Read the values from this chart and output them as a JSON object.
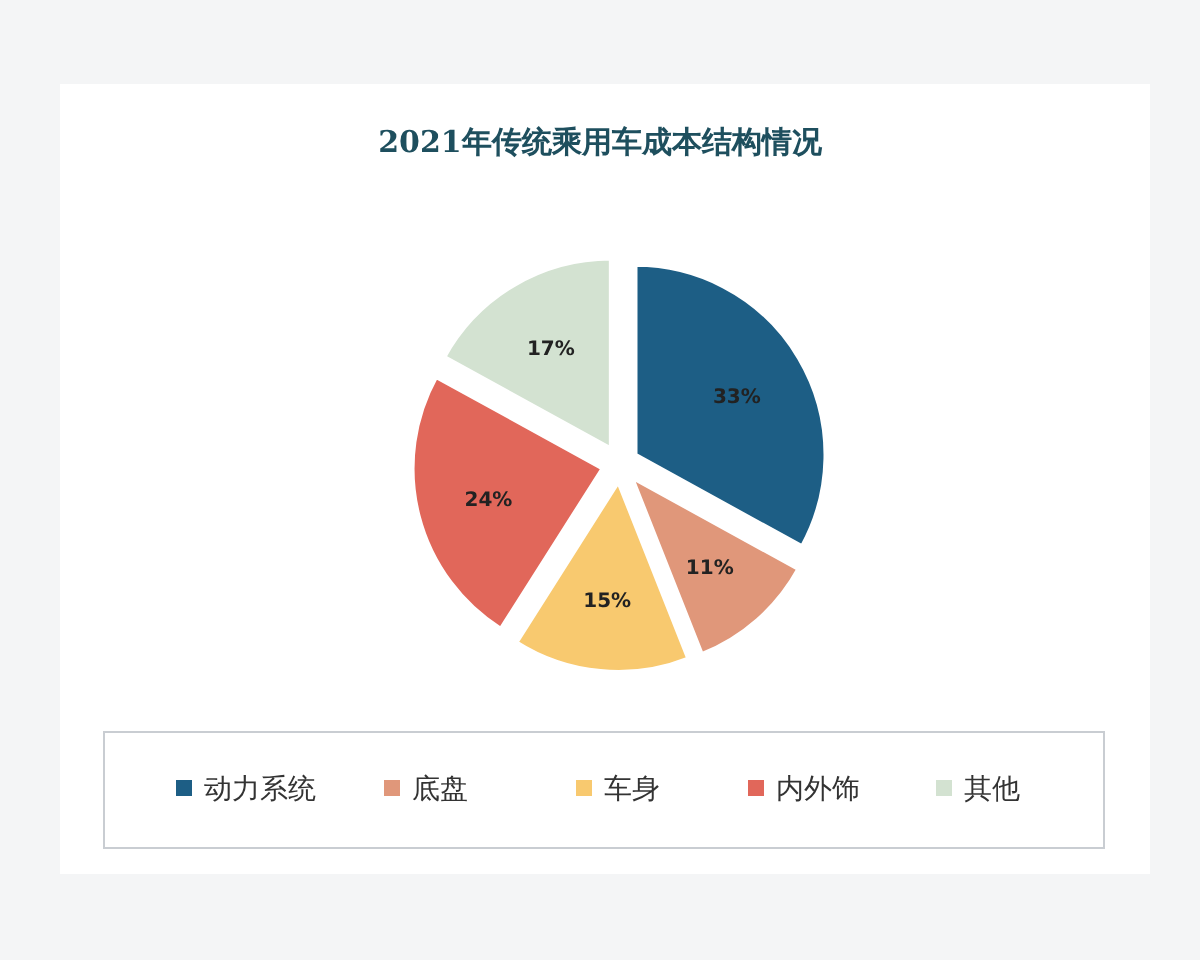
{
  "chart_data": {
    "type": "pie",
    "title": "2021年传统乘用车成本结构情况",
    "categories": [
      "动力系统",
      "底盘",
      "车身",
      "内外饰",
      "其他"
    ],
    "values": [
      33,
      11,
      15,
      24,
      17
    ],
    "colors": [
      "#1d5e85",
      "#e0977a",
      "#f8c96f",
      "#e1675a",
      "#d3e2d1"
    ],
    "value_labels": [
      "33%",
      "11%",
      "15%",
      "24%",
      "17%"
    ],
    "legend": "bottom"
  }
}
